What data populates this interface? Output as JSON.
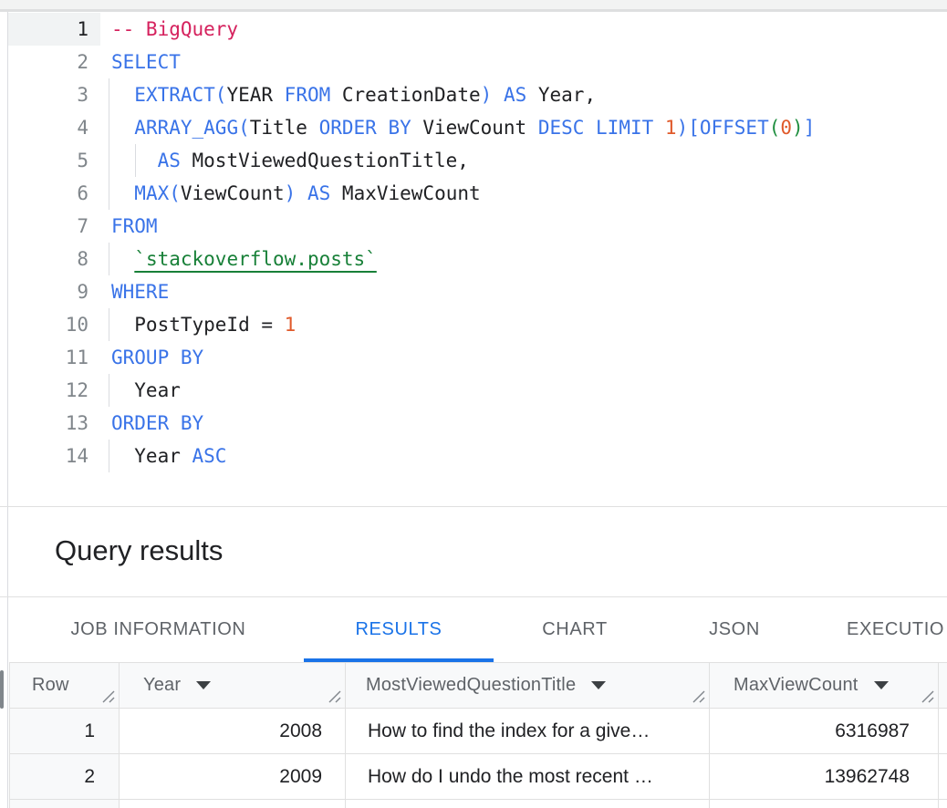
{
  "palette": {
    "keyword_blue": "#3973E8",
    "comment_pink": "#D5215D",
    "number_orange": "#E05A2B",
    "paren_green": "#1E8E3E",
    "table_ref_green": "#188038",
    "active_tab_blue": "#1A73E8",
    "inactive_tab_gray": "#5F6368",
    "header_bg": "#F8F9FA",
    "grid_line": "#E0E0E0"
  },
  "editor": {
    "lines": [
      {
        "num": "1",
        "active": true,
        "guides": [],
        "tokens": [
          [
            "comment",
            "-- BigQuery"
          ]
        ]
      },
      {
        "num": "2",
        "active": false,
        "guides": [],
        "tokens": [
          [
            "kw",
            "SELECT"
          ]
        ]
      },
      {
        "num": "3",
        "active": false,
        "guides": [
          0
        ],
        "tokens": [
          [
            "plain",
            "  "
          ],
          [
            "kw",
            "EXTRACT("
          ],
          [
            "plain",
            "YEAR "
          ],
          [
            "kw",
            "FROM"
          ],
          [
            "plain",
            " CreationDate"
          ],
          [
            "kw",
            ")"
          ],
          [
            "plain",
            " "
          ],
          [
            "kw",
            "AS"
          ],
          [
            "plain",
            " Year,"
          ]
        ]
      },
      {
        "num": "4",
        "active": false,
        "guides": [
          0
        ],
        "tokens": [
          [
            "plain",
            "  "
          ],
          [
            "kw",
            "ARRAY_AGG("
          ],
          [
            "plain",
            "Title "
          ],
          [
            "kw",
            "ORDER BY"
          ],
          [
            "plain",
            " ViewCount "
          ],
          [
            "kw",
            "DESC LIMIT"
          ],
          [
            "plain",
            " "
          ],
          [
            "num",
            "1"
          ],
          [
            "kw",
            ")[OFFSET"
          ],
          [
            "green",
            "("
          ],
          [
            "num",
            "0"
          ],
          [
            "green",
            ")"
          ],
          [
            "kw",
            "]"
          ]
        ]
      },
      {
        "num": "5",
        "active": false,
        "guides": [
          0,
          1
        ],
        "tokens": [
          [
            "plain",
            "    "
          ],
          [
            "kw",
            "AS"
          ],
          [
            "plain",
            " MostViewedQuestionTitle,"
          ]
        ]
      },
      {
        "num": "6",
        "active": false,
        "guides": [
          0
        ],
        "tokens": [
          [
            "plain",
            "  "
          ],
          [
            "kw",
            "MAX("
          ],
          [
            "plain",
            "ViewCount"
          ],
          [
            "kw",
            ")"
          ],
          [
            "plain",
            " "
          ],
          [
            "kw",
            "AS"
          ],
          [
            "plain",
            " MaxViewCount"
          ]
        ]
      },
      {
        "num": "7",
        "active": false,
        "guides": [],
        "tokens": [
          [
            "kw",
            "FROM"
          ]
        ]
      },
      {
        "num": "8",
        "active": false,
        "guides": [
          0
        ],
        "tokens": [
          [
            "plain",
            "  "
          ],
          [
            "tableref",
            "`stackoverflow.posts`"
          ]
        ]
      },
      {
        "num": "9",
        "active": false,
        "guides": [],
        "tokens": [
          [
            "kw",
            "WHERE"
          ]
        ]
      },
      {
        "num": "10",
        "active": false,
        "guides": [
          0
        ],
        "tokens": [
          [
            "plain",
            "  PostTypeId = "
          ],
          [
            "num",
            "1"
          ]
        ]
      },
      {
        "num": "11",
        "active": false,
        "guides": [],
        "tokens": [
          [
            "kw",
            "GROUP BY"
          ]
        ]
      },
      {
        "num": "12",
        "active": false,
        "guides": [
          0
        ],
        "tokens": [
          [
            "plain",
            "  Year"
          ]
        ]
      },
      {
        "num": "13",
        "active": false,
        "guides": [],
        "tokens": [
          [
            "kw",
            "ORDER BY"
          ]
        ]
      },
      {
        "num": "14",
        "active": false,
        "guides": [
          0
        ],
        "tokens": [
          [
            "plain",
            "  Year "
          ],
          [
            "kw",
            "ASC"
          ]
        ]
      }
    ]
  },
  "results_panel": {
    "title": "Query results",
    "tabs": [
      {
        "label": "JOB INFORMATION",
        "active": false
      },
      {
        "label": "RESULTS",
        "active": true
      },
      {
        "label": "CHART",
        "active": false
      },
      {
        "label": "JSON",
        "active": false
      },
      {
        "label": "EXECUTIO",
        "active": false
      }
    ]
  },
  "table": {
    "columns": [
      {
        "label": "Row",
        "sortable": false
      },
      {
        "label": "Year",
        "sortable": true
      },
      {
        "label": "MostViewedQuestionTitle",
        "sortable": true
      },
      {
        "label": "MaxViewCount",
        "sortable": true
      }
    ],
    "rows": [
      {
        "row": "1",
        "year": "2008",
        "title": "How to find the index for a give…",
        "max": "6316987"
      },
      {
        "row": "2",
        "year": "2009",
        "title": "How do I undo the most recent …",
        "max": "13962748"
      }
    ]
  }
}
